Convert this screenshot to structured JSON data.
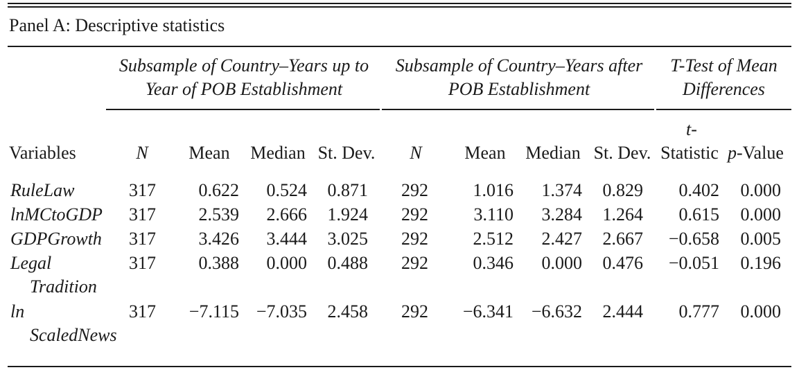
{
  "panel_title": "Panel A: Descriptive statistics",
  "groups": {
    "before": [
      "Subsample of Country–Years up to",
      "Year of POB Establishment"
    ],
    "after": [
      "Subsample of Country–Years after",
      "POB Establishment"
    ],
    "ttest": [
      "T-Test of Mean",
      "Differences"
    ]
  },
  "columns": {
    "variables": "Variables",
    "n": "N",
    "mean": "Mean",
    "median": "Median",
    "stdev": "St. Dev.",
    "t_top": "t-",
    "t_bottom": "Statistic",
    "p_italic": "p",
    "p_rest": "-Value"
  },
  "rows": [
    {
      "name": [
        "RuleLaw"
      ],
      "n1": "317",
      "mean1": "0.622",
      "median1": "0.524",
      "sd1": "0.871",
      "n2": "292",
      "mean2": "1.016",
      "median2": "1.374",
      "sd2": "0.829",
      "t": "0.402",
      "p": "0.000"
    },
    {
      "name": [
        "lnMCtoGDP"
      ],
      "n1": "317",
      "mean1": "2.539",
      "median1": "2.666",
      "sd1": "1.924",
      "n2": "292",
      "mean2": "3.110",
      "median2": "3.284",
      "sd2": "1.264",
      "t": "0.615",
      "p": "0.000"
    },
    {
      "name": [
        "GDPGrowth"
      ],
      "n1": "317",
      "mean1": "3.426",
      "median1": "3.444",
      "sd1": "3.025",
      "n2": "292",
      "mean2": "2.512",
      "median2": "2.427",
      "sd2": "2.667",
      "t": "−0.658",
      "p": "0.005"
    },
    {
      "name": [
        "Legal",
        "Tradition"
      ],
      "n1": "317",
      "mean1": "0.388",
      "median1": "0.000",
      "sd1": "0.488",
      "n2": "292",
      "mean2": "0.346",
      "median2": "0.000",
      "sd2": "0.476",
      "t": "−0.051",
      "p": "0.196"
    },
    {
      "name": [
        "ln",
        "ScaledNews"
      ],
      "n1": "317",
      "mean1": "−7.115",
      "median1": "−7.035",
      "sd1": "2.458",
      "n2": "292",
      "mean2": "−6.341",
      "median2": "−6.632",
      "sd2": "2.444",
      "t": "0.777",
      "p": "0.000"
    }
  ]
}
